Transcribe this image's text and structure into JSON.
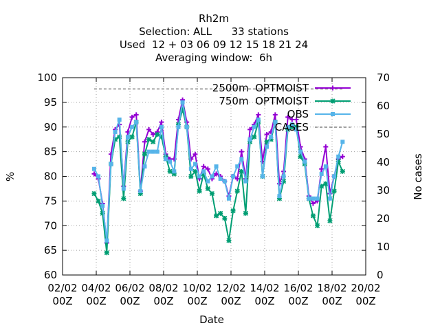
{
  "chart_data": {
    "type": "line",
    "title_lines": [
      "Rh2m",
      "Selection: ALL      33 stations",
      "Used  12 + 03 06 09 12 15 18 21 24",
      "Averaging window:  6h"
    ],
    "xlabel": "Date",
    "ylabel": "%",
    "y2label": "No cases",
    "xlim": [
      "2002-02-02T00:00",
      "2002-02-20T00:00"
    ],
    "xtick_labels": [
      [
        "02/02",
        "00Z"
      ],
      [
        "04/02",
        "00Z"
      ],
      [
        "06/02",
        "00Z"
      ],
      [
        "08/02",
        "00Z"
      ],
      [
        "10/02",
        "00Z"
      ],
      [
        "12/02",
        "00Z"
      ],
      [
        "14/02",
        "00Z"
      ],
      [
        "16/02",
        "00Z"
      ],
      [
        "18/02",
        "00Z"
      ],
      [
        "20/02",
        "00Z"
      ]
    ],
    "ylim": [
      60,
      100
    ],
    "yticks": [
      "60",
      "65",
      "70",
      "75",
      "80",
      "85",
      "90",
      "95",
      "100"
    ],
    "y2lim": [
      0,
      70
    ],
    "y2ticks": [
      "0",
      "10",
      "20",
      "30",
      "40",
      "50",
      "60",
      "70"
    ],
    "grid": true,
    "legend_position": "top-right",
    "x_dates": [
      "2002-02-03T21:00",
      "2002-02-04T03:00",
      "2002-02-04T09:00",
      "2002-02-04T15:00",
      "2002-02-04T21:00",
      "2002-02-05T03:00",
      "2002-02-05T09:00",
      "2002-02-05T15:00",
      "2002-02-05T21:00",
      "2002-02-06T03:00",
      "2002-02-06T09:00",
      "2002-02-06T15:00",
      "2002-02-06T21:00",
      "2002-02-07T03:00",
      "2002-02-07T09:00",
      "2002-02-07T15:00",
      "2002-02-07T21:00",
      "2002-02-08T03:00",
      "2002-02-08T09:00",
      "2002-02-08T15:00",
      "2002-02-08T21:00",
      "2002-02-09T03:00",
      "2002-02-09T09:00",
      "2002-02-09T15:00",
      "2002-02-09T21:00",
      "2002-02-10T03:00",
      "2002-02-10T09:00",
      "2002-02-10T15:00",
      "2002-02-10T21:00",
      "2002-02-11T03:00",
      "2002-02-11T09:00",
      "2002-02-11T15:00",
      "2002-02-11T21:00",
      "2002-02-12T03:00",
      "2002-02-12T09:00",
      "2002-02-12T15:00",
      "2002-02-12T21:00",
      "2002-02-13T03:00",
      "2002-02-13T09:00",
      "2002-02-13T15:00",
      "2002-02-13T21:00",
      "2002-02-14T03:00",
      "2002-02-14T09:00",
      "2002-02-14T15:00",
      "2002-02-14T21:00",
      "2002-02-15T03:00",
      "2002-02-15T09:00",
      "2002-02-15T15:00",
      "2002-02-15T21:00",
      "2002-02-16T03:00",
      "2002-02-16T09:00",
      "2002-02-16T15:00",
      "2002-02-16T21:00",
      "2002-02-17T03:00",
      "2002-02-17T09:00",
      "2002-02-17T15:00",
      "2002-02-17T21:00",
      "2002-02-18T03:00",
      "2002-02-18T09:00",
      "2002-02-18T15:00"
    ],
    "series": [
      {
        "name": "2500m  OPTMOIST",
        "color": "#9400d3",
        "marker": "plus",
        "values": [
          80.5,
          79.5,
          74.5,
          66.5,
          84.5,
          89.5,
          90.5,
          78,
          89,
          92,
          92.5,
          77,
          87,
          89.5,
          88.5,
          89,
          91,
          84.5,
          83.5,
          83.5,
          91.5,
          95.5,
          91,
          83.5,
          84.5,
          79.5,
          82,
          81.5,
          79.5,
          80.5,
          80,
          79,
          76,
          80,
          79.5,
          85,
          79.5,
          89.5,
          90.5,
          92.5,
          83,
          88.5,
          89,
          92.5,
          78.5,
          81,
          92,
          91.5,
          91.5,
          86,
          83.5,
          76,
          74.5,
          75,
          81.5,
          86,
          76.5,
          80,
          83.5,
          84
        ]
      },
      {
        "name": "750m  OPTMOIST",
        "color": "#009e73",
        "marker": "star",
        "values": [
          76.5,
          75,
          72.5,
          64.5,
          82.5,
          87.5,
          88,
          75.5,
          87,
          88,
          91,
          76.5,
          84.5,
          87.5,
          87,
          88.5,
          88,
          84,
          81,
          80.5,
          90.5,
          93.5,
          90,
          80,
          81,
          77,
          80.5,
          77.5,
          76.5,
          72,
          72.5,
          71.5,
          67,
          73,
          77,
          81,
          72.5,
          87,
          88,
          91,
          80,
          87,
          87.5,
          91,
          75.5,
          79,
          89.5,
          90,
          90,
          84,
          82.5,
          75.5,
          72,
          70,
          78,
          78.5,
          71,
          77,
          83,
          81
        ]
      },
      {
        "name": "OBS",
        "color": "#56b4e9",
        "marker": "square",
        "values": [
          81.5,
          80,
          74,
          67,
          82.5,
          89,
          91.5,
          77.5,
          88,
          90,
          91,
          77,
          82,
          85,
          85,
          85,
          90,
          83.5,
          83,
          81,
          90,
          95,
          90,
          81.5,
          82.5,
          80,
          81,
          79,
          80,
          82,
          79.5,
          79,
          75.5,
          80,
          82,
          83.5,
          79,
          87.5,
          90,
          91.5,
          80,
          86,
          88,
          91,
          76,
          80,
          90,
          90.5,
          89.5,
          85,
          83,
          75.5,
          75.5,
          75.5,
          80.5,
          82,
          75.5,
          80,
          84,
          87
        ]
      }
    ],
    "cases_series": {
      "name": "CASES",
      "color": "#808080",
      "style": "dashed",
      "axis": "y2",
      "value": 66,
      "x_range": [
        "2002-02-03T21:00",
        "2002-02-18T15:00"
      ]
    }
  }
}
